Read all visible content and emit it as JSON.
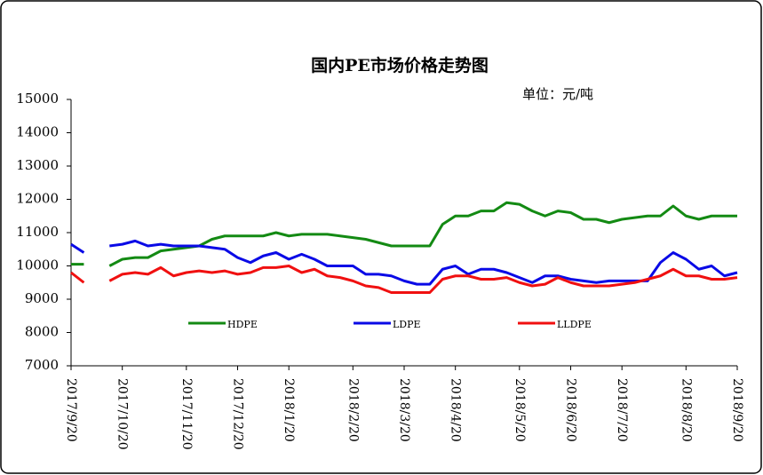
{
  "chart_data": {
    "type": "line",
    "title": "国内PE市场价格走势图",
    "unit_label": "单位：元/吨",
    "categories": [
      "2017/9/20",
      null,
      null,
      null,
      "2017/10/20",
      null,
      null,
      null,
      null,
      "2017/11/20",
      null,
      null,
      null,
      "2017/12/20",
      null,
      null,
      null,
      "2018/1/20",
      null,
      null,
      null,
      null,
      "2018/2/20",
      null,
      null,
      null,
      "2018/3/20",
      null,
      null,
      null,
      "2018/4/20",
      null,
      null,
      null,
      null,
      "2018/5/20",
      null,
      null,
      null,
      "2018/6/20",
      null,
      null,
      null,
      "2018/7/20",
      null,
      null,
      null,
      null,
      "2018/8/20",
      null,
      null,
      null,
      "2018/9/20"
    ],
    "series": [
      {
        "name": "HDPE",
        "color": "#138a13",
        "values": [
          10050,
          10050,
          null,
          10000,
          10200,
          10250,
          10250,
          10450,
          10500,
          10550,
          10600,
          10800,
          10900,
          10900,
          10900,
          10900,
          11000,
          10900,
          10950,
          10950,
          10950,
          10900,
          10850,
          10800,
          10700,
          10600,
          10600,
          10600,
          10600,
          11250,
          11500,
          11500,
          11650,
          11650,
          11900,
          11850,
          11650,
          11500,
          11650,
          11600,
          11400,
          11400,
          11300,
          11400,
          11450,
          11500,
          11500,
          11800,
          11500,
          11400,
          11500,
          11500,
          11500
        ]
      },
      {
        "name": "LDPE",
        "color": "#0a0ae6",
        "values": [
          10650,
          10400,
          null,
          10600,
          10650,
          10750,
          10600,
          10650,
          10600,
          10600,
          10600,
          10550,
          10500,
          10250,
          10100,
          10300,
          10400,
          10200,
          10350,
          10200,
          10000,
          10000,
          10000,
          9750,
          9750,
          9700,
          9550,
          9450,
          9450,
          9900,
          10000,
          9750,
          9900,
          9900,
          9800,
          9650,
          9500,
          9700,
          9700,
          9600,
          9550,
          9500,
          9550,
          9550,
          9550,
          9550,
          10100,
          10400,
          10200,
          9900,
          10000,
          9700,
          9800
        ]
      },
      {
        "name": "LLDPE",
        "color": "#f01010",
        "values": [
          9800,
          9500,
          null,
          9550,
          9750,
          9800,
          9750,
          9950,
          9700,
          9800,
          9850,
          9800,
          9850,
          9750,
          9800,
          9950,
          9950,
          10000,
          9800,
          9900,
          9700,
          9650,
          9550,
          9400,
          9350,
          9200,
          9200,
          9200,
          9200,
          9600,
          9700,
          9700,
          9600,
          9600,
          9650,
          9500,
          9400,
          9450,
          9650,
          9500,
          9400,
          9400,
          9400,
          9450,
          9500,
          9600,
          9700,
          9900,
          9700,
          9700,
          9600,
          9600,
          9650
        ]
      }
    ],
    "ylim": [
      7000,
      15000
    ],
    "yticks": [
      7000,
      8000,
      9000,
      10000,
      11000,
      12000,
      13000,
      14000,
      15000
    ],
    "grid": false
  }
}
